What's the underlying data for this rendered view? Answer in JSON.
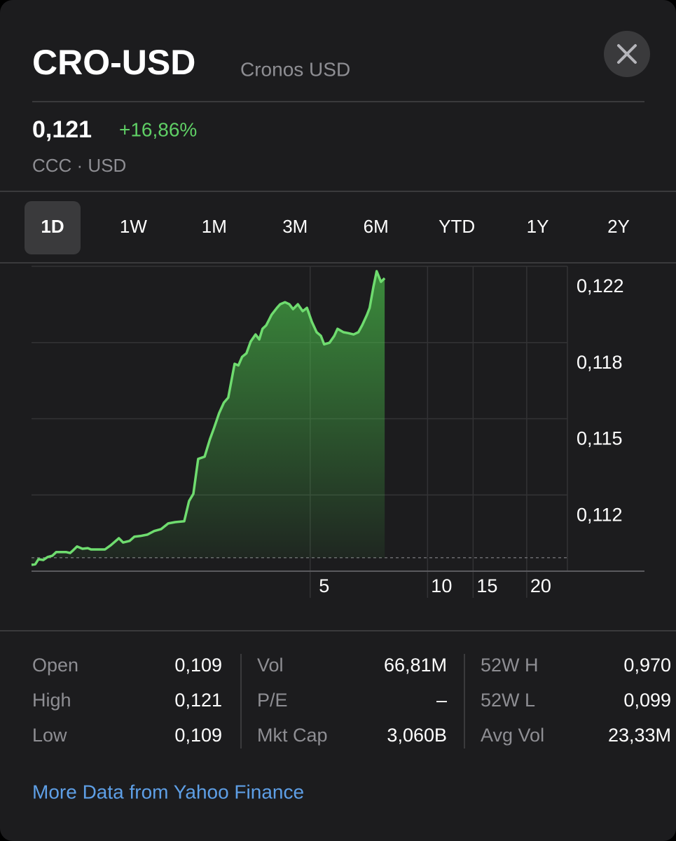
{
  "header": {
    "title": "CRO-USD",
    "subtitle": "Cronos USD",
    "price": "0,121",
    "change": "+16,86%",
    "exchange": "CCC · USD"
  },
  "tabs": {
    "items": [
      "1D",
      "1W",
      "1M",
      "3M",
      "6M",
      "YTD",
      "1Y",
      "2Y"
    ],
    "selected": 0
  },
  "chart_data": {
    "type": "line",
    "color": "#6fdc6f",
    "area": true,
    "reference_line": 0.1088,
    "xlim": [
      0,
      100
    ],
    "ylim": [
      0.1082,
      0.1218
    ],
    "xticks": [
      {
        "value": 52,
        "label": "5"
      },
      {
        "value": 73.9,
        "label": "10"
      },
      {
        "value": 82.4,
        "label": "15"
      },
      {
        "value": 92.4,
        "label": "20"
      }
    ],
    "yticks": [
      {
        "value": 0.1218,
        "label": "0,122"
      },
      {
        "value": 0.1184,
        "label": "0,118"
      },
      {
        "value": 0.115,
        "label": "0,115"
      },
      {
        "value": 0.1116,
        "label": "0,112"
      }
    ],
    "x": [
      0,
      0.7,
      1.3,
      2.2,
      3.0,
      3.9,
      4.6,
      6.5,
      7.2,
      7.8,
      8.5,
      9.5,
      10.5,
      11.1,
      12.4,
      13.7,
      14.8,
      16.3,
      17.1,
      18.3,
      19.2,
      20.3,
      21.6,
      22.9,
      24.2,
      25.5,
      26.8,
      28.5,
      29.4,
      30.2,
      31.1,
      32.3,
      33.3,
      34.1,
      35.0,
      35.9,
      36.7,
      37.9,
      38.6,
      39.3,
      40.1,
      40.9,
      41.8,
      42.5,
      43.1,
      43.8,
      44.8,
      45.8,
      46.4,
      47.3,
      48.1,
      48.8,
      49.7,
      50.6,
      51.4,
      52.3,
      53.2,
      54.0,
      54.6,
      55.6,
      56.5,
      57.1,
      58.2,
      59.1,
      60.1,
      61.0,
      61.7,
      62.6,
      63.1,
      63.8,
      64.4,
      65.2,
      65.9
    ],
    "values": [
      0.10848,
      0.10851,
      0.10873,
      0.1087,
      0.10883,
      0.10889,
      0.10905,
      0.10905,
      0.10901,
      0.10914,
      0.1093,
      0.1092,
      0.10923,
      0.10917,
      0.10917,
      0.10917,
      0.10936,
      0.10967,
      0.10948,
      0.10955,
      0.10974,
      0.10977,
      0.10983,
      0.10999,
      0.11008,
      0.11033,
      0.11039,
      0.11043,
      0.11133,
      0.11165,
      0.11321,
      0.11331,
      0.11409,
      0.11462,
      0.11525,
      0.11572,
      0.11594,
      0.11745,
      0.11738,
      0.11776,
      0.11792,
      0.11845,
      0.11876,
      0.11854,
      0.11901,
      0.11917,
      0.11964,
      0.11995,
      0.12011,
      0.1202,
      0.12011,
      0.11989,
      0.12011,
      0.1198,
      0.11995,
      0.11933,
      0.11886,
      0.1187,
      0.11832,
      0.11839,
      0.1187,
      0.11901,
      0.11886,
      0.11882,
      0.11876,
      0.11886,
      0.11917,
      0.11964,
      0.11995,
      0.12089,
      0.12158,
      0.12111,
      0.12127
    ]
  },
  "stats": {
    "columns": [
      {
        "rows": [
          {
            "label": "Open",
            "value": "0,109"
          },
          {
            "label": "High",
            "value": "0,121"
          },
          {
            "label": "Low",
            "value": "0,109"
          }
        ]
      },
      {
        "rows": [
          {
            "label": "Vol",
            "value": "66,81M"
          },
          {
            "label": "P/E",
            "value": "–"
          },
          {
            "label": "Mkt Cap",
            "value": "3,060B"
          }
        ]
      },
      {
        "rows": [
          {
            "label": "52W H",
            "value": "0,970"
          },
          {
            "label": "52W L",
            "value": "0,099"
          },
          {
            "label": "Avg Vol",
            "value": "23,33M"
          }
        ]
      }
    ]
  },
  "link": "More Data from Yahoo Finance"
}
